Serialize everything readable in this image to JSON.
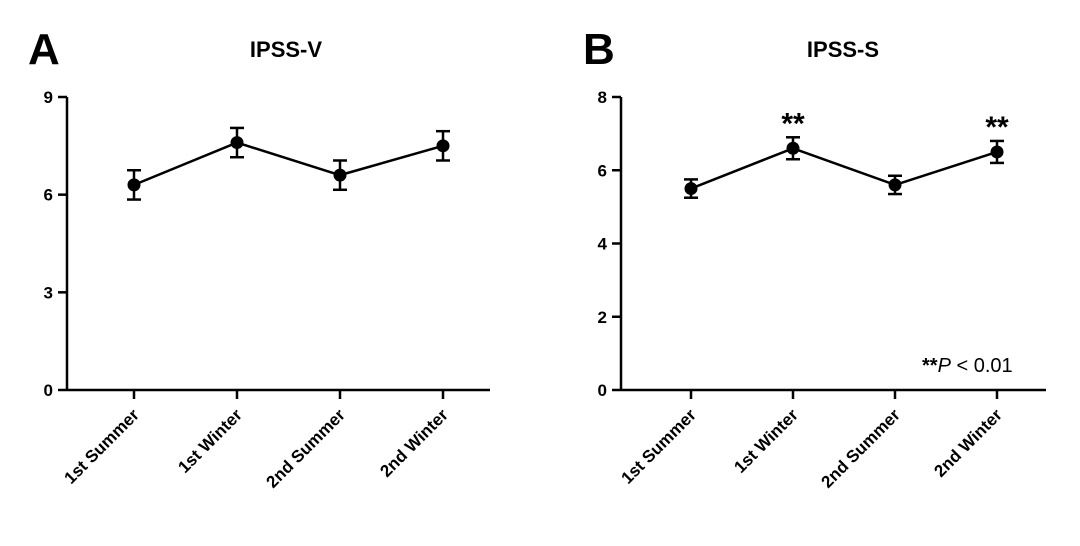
{
  "chart_data": [
    {
      "type": "line",
      "panel_label": "A",
      "title": "IPSS-V",
      "categories": [
        "1st Summer",
        "1st Winter",
        "2nd Summer",
        "2nd Winter"
      ],
      "values": [
        6.3,
        7.6,
        6.6,
        7.5
      ],
      "errors": [
        0.45,
        0.45,
        0.45,
        0.45
      ],
      "ylim": [
        0,
        9
      ],
      "yticks": [
        0,
        3,
        6,
        9
      ],
      "ytick_labels": [
        "0",
        "3",
        "6",
        "9"
      ],
      "significance": [
        "",
        "",
        "",
        ""
      ],
      "annotation": null,
      "grid": false,
      "marker_color": "#000000"
    },
    {
      "type": "line",
      "panel_label": "B",
      "title": "IPSS-S",
      "categories": [
        "1st Summer",
        "1st Winter",
        "2nd Summer",
        "2nd Winter"
      ],
      "values": [
        5.5,
        6.6,
        5.6,
        6.5
      ],
      "errors": [
        0.25,
        0.3,
        0.25,
        0.3
      ],
      "ylim": [
        0,
        8
      ],
      "yticks": [
        0,
        2,
        4,
        6,
        8
      ],
      "ytick_labels": [
        "0",
        "2",
        "4",
        "6",
        "8"
      ],
      "significance": [
        "",
        "**",
        "",
        "**"
      ],
      "annotation": {
        "stars": "**",
        "p_symbol": "P",
        "rest": " < 0.01"
      },
      "grid": false,
      "marker_color": "#000000"
    }
  ]
}
